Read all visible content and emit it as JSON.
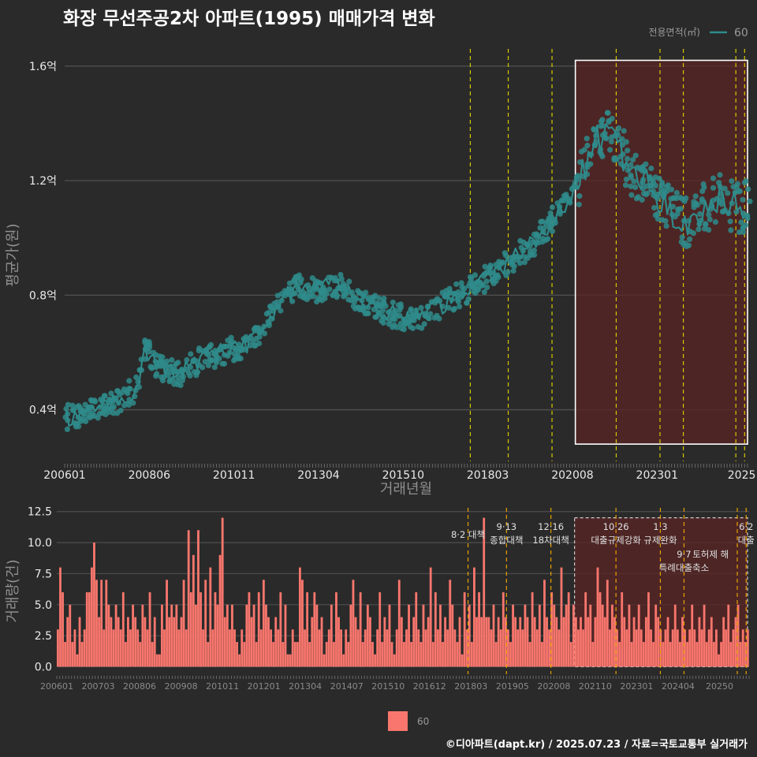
{
  "title": "화장 무선주공2차 아파트(1995) 매매가격 변화",
  "credit": "©디아파트(dapt.kr) / 2025.07.23 / 자료=국토교통부 실거래가",
  "colors": {
    "background": "#2a2a2a",
    "line": "#2f8b8b",
    "points": "#2f8b8b",
    "bars": "#f8766d",
    "highlight_box": "#5a2424",
    "policy_line": "#d8c800",
    "policy_line_bottom": "#e8a000"
  },
  "legend_top": {
    "title": "전용면적(㎡)",
    "label": "60"
  },
  "legend_bottom": {
    "label": "60"
  },
  "chart_data": [
    {
      "type": "line",
      "title": "화장 무선주공2차 아파트(1995) 매매가격 변화",
      "xlabel": "거래년월",
      "ylabel": "평균가(원)",
      "x_tick_labels": [
        "200601",
        "200806",
        "201011",
        "201304",
        "201510",
        "201803",
        "202008",
        "202301",
        "2025"
      ],
      "y_tick_labels": [
        "0.4억",
        "0.8억",
        "1.2억",
        "1.6억"
      ],
      "y_ticks": [
        0.4,
        0.8,
        1.2,
        1.6
      ],
      "ylim": [
        0.22,
        1.66
      ],
      "x_range": [
        "2006-01",
        "2025-07"
      ],
      "grid": true,
      "legend_position": "top-right",
      "series": [
        {
          "name": "60",
          "trend": [
            [
              "2006-01",
              0.37
            ],
            [
              "2006-07",
              0.39
            ],
            [
              "2007-01",
              0.41
            ],
            [
              "2007-07",
              0.43
            ],
            [
              "2008-01",
              0.47
            ],
            [
              "2008-04",
              0.61
            ],
            [
              "2008-09",
              0.55
            ],
            [
              "2009-03",
              0.52
            ],
            [
              "2009-09",
              0.56
            ],
            [
              "2010-03",
              0.59
            ],
            [
              "2010-09",
              0.61
            ],
            [
              "2011-03",
              0.63
            ],
            [
              "2011-09",
              0.7
            ],
            [
              "2012-03",
              0.79
            ],
            [
              "2012-09",
              0.83
            ],
            [
              "2013-03",
              0.82
            ],
            [
              "2013-09",
              0.84
            ],
            [
              "2014-03",
              0.8
            ],
            [
              "2014-09",
              0.77
            ],
            [
              "2015-03",
              0.74
            ],
            [
              "2015-09",
              0.72
            ],
            [
              "2016-03",
              0.73
            ],
            [
              "2016-09",
              0.76
            ],
            [
              "2017-03",
              0.8
            ],
            [
              "2017-09",
              0.83
            ],
            [
              "2018-03",
              0.87
            ],
            [
              "2018-09",
              0.92
            ],
            [
              "2019-03",
              0.96
            ],
            [
              "2019-09",
              1.03
            ],
            [
              "2020-03",
              1.1
            ],
            [
              "2020-09",
              1.2
            ],
            [
              "2021-01",
              1.33
            ],
            [
              "2021-06",
              1.36
            ],
            [
              "2021-11",
              1.3
            ],
            [
              "2022-04",
              1.22
            ],
            [
              "2022-09",
              1.17
            ],
            [
              "2023-03",
              1.12
            ],
            [
              "2023-09",
              1.05
            ],
            [
              "2024-03",
              1.1
            ],
            [
              "2024-09",
              1.13
            ],
            [
              "2025-03",
              1.1
            ],
            [
              "2025-07",
              1.12
            ]
          ]
        }
      ],
      "policy_dates": [
        "2017-08",
        "2018-09",
        "2019-12",
        "2021-10",
        "2023-01",
        "2023-09",
        "2025-03",
        "2025-06"
      ],
      "highlight_range": [
        "2020-08",
        "2025-07"
      ],
      "highlight_y": [
        0.28,
        1.62
      ]
    },
    {
      "type": "bar",
      "xlabel": "",
      "ylabel": "거래량(건)",
      "x_tick_labels": [
        "200601",
        "200703",
        "200806",
        "200908",
        "201011",
        "201201",
        "201304",
        "201407",
        "201510",
        "201612",
        "201803",
        "201905",
        "202008",
        "202110",
        "202301",
        "202404",
        "20250"
      ],
      "y_tick_labels": [
        "0.0",
        "2.5",
        "5.0",
        "7.5",
        "10.0",
        "12.5"
      ],
      "y_ticks": [
        0,
        2.5,
        5,
        7.5,
        10,
        12.5
      ],
      "ylim": [
        -0.6,
        12.8
      ],
      "series": [
        {
          "name": "60",
          "values": [
            3,
            8,
            6,
            2,
            4,
            5,
            2,
            3,
            1,
            4,
            2,
            3,
            6,
            6,
            8,
            10,
            7,
            4,
            7,
            3,
            7,
            5,
            4,
            3,
            5,
            4,
            3,
            6,
            2,
            4,
            3,
            5,
            4,
            3,
            2,
            5,
            4,
            3,
            6,
            2,
            4,
            1,
            1,
            5,
            3,
            7,
            4,
            5,
            4,
            5,
            3,
            4,
            7,
            3,
            11,
            6,
            9,
            5,
            11,
            6,
            3,
            7,
            2,
            8,
            3,
            6,
            5,
            9,
            12,
            4,
            5,
            3,
            5,
            3,
            2,
            1,
            3,
            2,
            5,
            6,
            4,
            5,
            2,
            6,
            3,
            7,
            5,
            4,
            3,
            2,
            4,
            3,
            6,
            2,
            5,
            1,
            1,
            3,
            2,
            2,
            8,
            7,
            3,
            6,
            2,
            4,
            6,
            5,
            3,
            4,
            1,
            2,
            3,
            5,
            2,
            6,
            4,
            3,
            1,
            3,
            2,
            5,
            7,
            4,
            3,
            6,
            2,
            3,
            5,
            4,
            2,
            1,
            3,
            6,
            2,
            4,
            3,
            5,
            2,
            1,
            3,
            7,
            4,
            2,
            3,
            5,
            2,
            4,
            6,
            3,
            2,
            5,
            3,
            4,
            8,
            2,
            6,
            3,
            5,
            2,
            4,
            3,
            7,
            5,
            3,
            2,
            4,
            1,
            6,
            3,
            5,
            2,
            8,
            4,
            6,
            4,
            12,
            4,
            4,
            3,
            5,
            2,
            4,
            3,
            6,
            4,
            3,
            2,
            5,
            4,
            3,
            4,
            3,
            5,
            4,
            2,
            6,
            4,
            3,
            5,
            2,
            7,
            4,
            3,
            6,
            5,
            4,
            3,
            8,
            4,
            5,
            6,
            2,
            5,
            4,
            3,
            4,
            3,
            6,
            4,
            5,
            2,
            4,
            8,
            6,
            5,
            4,
            7,
            3,
            5,
            4,
            3,
            2,
            6,
            4,
            3,
            5,
            2,
            4,
            3,
            5,
            3,
            2,
            4,
            6,
            3,
            2,
            5,
            4,
            3,
            2,
            3,
            4,
            2,
            3,
            5,
            3,
            2,
            4,
            3,
            2,
            3,
            5,
            3,
            2,
            4,
            3,
            5,
            2,
            3,
            4,
            2,
            3,
            1,
            2,
            4,
            3,
            5,
            2,
            3,
            4,
            5,
            2,
            3,
            2,
            3
          ]
        }
      ],
      "annotations": [
        {
          "date": "2017-08",
          "lines": [
            "8·2 대책"
          ]
        },
        {
          "date": "2018-09",
          "lines": [
            "9·13",
            "종합대책"
          ]
        },
        {
          "date": "2019-12",
          "lines": [
            "12·16",
            "18차대책"
          ]
        },
        {
          "date": "2021-10",
          "lines": [
            "10·26",
            "대출규제강화"
          ]
        },
        {
          "date": "2023-01",
          "lines": [
            "1·3",
            "규제완화"
          ]
        },
        {
          "date": "2023-09",
          "lines": [
            "9·7",
            "특례대출축소"
          ]
        },
        {
          "date": "2024-06",
          "lines": [
            "토허제 해"
          ]
        },
        {
          "date": "2025-06",
          "lines": [
            "6·2",
            "대출"
          ]
        }
      ]
    }
  ]
}
